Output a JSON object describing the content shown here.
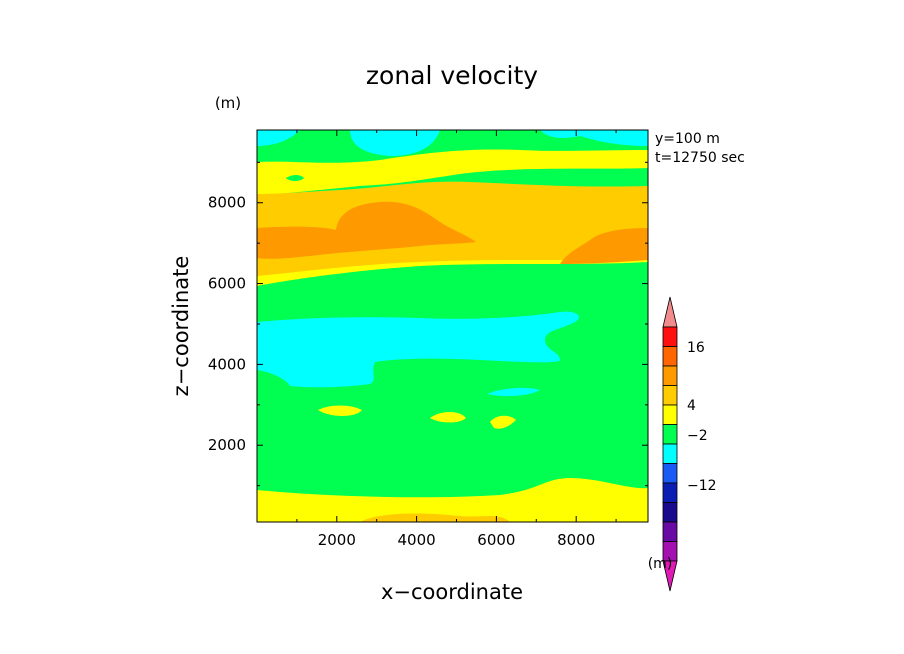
{
  "chart_data": {
    "type": "heatmap",
    "title": "zonal velocity",
    "xlabel": "x−coordinate",
    "ylabel": "z−coordinate",
    "x_unit": "(m)",
    "y_unit": "(m)",
    "colorbar_unit": "(m)",
    "annotations": [
      "y=100 m",
      "t=12750 sec"
    ],
    "xlim": [
      0,
      9800
    ],
    "ylim": [
      100,
      9800
    ],
    "x_ticks": [
      "2000",
      "4000",
      "6000",
      "8000"
    ],
    "y_ticks": [
      "2000",
      "4000",
      "6000",
      "8000"
    ],
    "colorbar": {
      "colors": [
        "#e01bb5",
        "#a40fb0",
        "#6a0aa4",
        "#1a0a8c",
        "#0a1eb4",
        "#1a5af5",
        "#00ffff",
        "#00ff50",
        "#ffff00",
        "#ffcc00",
        "#ff9900",
        "#ff6600",
        "#ff0f0f",
        "#f28c8c"
      ],
      "tick_labels": [
        "16",
        "4",
        "−2",
        "−12"
      ]
    },
    "bands": [
      {
        "z": [
          100,
          250
        ],
        "level": "green"
      },
      {
        "z": [
          250,
          800
        ],
        "level": "yellow"
      },
      {
        "z": [
          800,
          2000
        ],
        "level": "green"
      },
      {
        "z": [
          2000,
          3300
        ],
        "level": "green"
      },
      {
        "z": [
          3300,
          5400
        ],
        "level": "cyan"
      },
      {
        "z": [
          5400,
          6000
        ],
        "level": "green"
      },
      {
        "z": [
          6000,
          6600
        ],
        "level": "yellow"
      },
      {
        "z": [
          6600,
          8300
        ],
        "level": "orange"
      },
      {
        "z": [
          8300,
          8800
        ],
        "level": "yellow"
      },
      {
        "z": [
          8800,
          9400
        ],
        "level": "green"
      },
      {
        "z": [
          9400,
          9800
        ],
        "level": "cyan"
      }
    ]
  }
}
